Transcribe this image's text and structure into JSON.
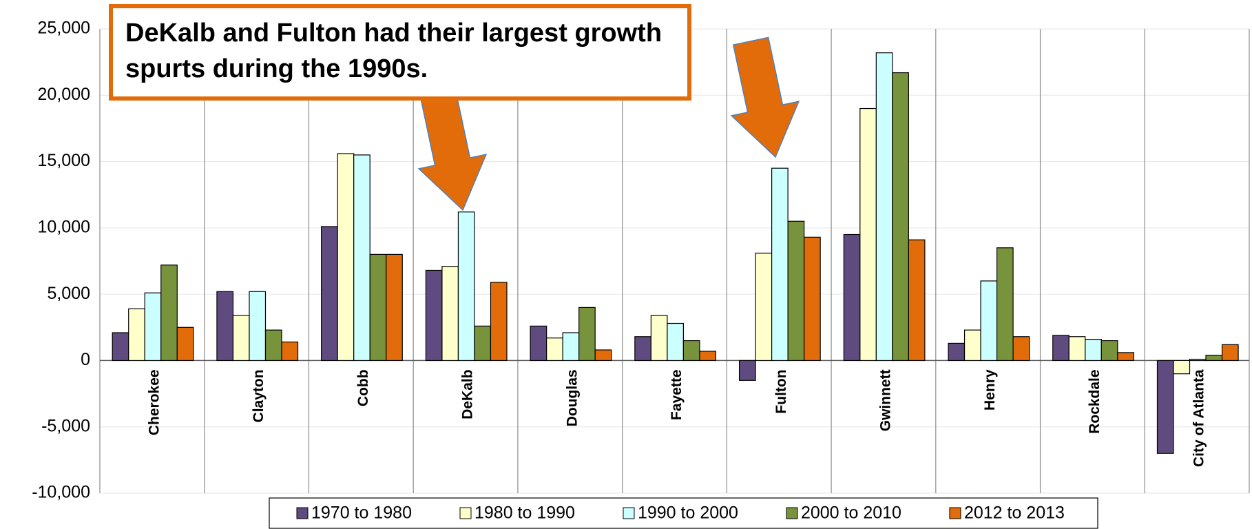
{
  "chart_data": {
    "type": "bar",
    "annotation": "DeKalb and Fulton had their largest growth spurts during the 1990s.",
    "categories": [
      "Cherokee",
      "Clayton",
      "Cobb",
      "DeKalb",
      "Douglas",
      "Fayette",
      "Fulton",
      "Gwinnett",
      "Henry",
      "Rockdale",
      "City of Atlanta"
    ],
    "series": [
      {
        "name": "1970 to 1980",
        "color": "#5f4b80",
        "values": [
          2100,
          5200,
          10100,
          6800,
          2600,
          1800,
          -1500,
          9500,
          1300,
          1900,
          -7000
        ]
      },
      {
        "name": "1980 to 1990",
        "color": "#ffffcc",
        "values": [
          3900,
          3400,
          15600,
          7100,
          1700,
          3400,
          8100,
          19000,
          2300,
          1800,
          -1000
        ]
      },
      {
        "name": "1990 to 2000",
        "color": "#ccffff",
        "values": [
          5100,
          5200,
          15500,
          11200,
          2100,
          2800,
          14500,
          23200,
          6000,
          1600,
          100
        ]
      },
      {
        "name": "2000 to 2010",
        "color": "#77933c",
        "values": [
          7200,
          2300,
          8000,
          2600,
          4000,
          1500,
          10500,
          21700,
          8500,
          1500,
          400
        ]
      },
      {
        "name": "2012 to 2013",
        "color": "#e36c0a",
        "values": [
          2500,
          1400,
          8000,
          5900,
          800,
          700,
          9300,
          9100,
          1800,
          600,
          1200
        ]
      }
    ],
    "ylim": [
      -10000,
      25000
    ],
    "yticks": [
      {
        "value": -10000,
        "label": "-10,000"
      },
      {
        "value": -5000,
        "label": "-5,000"
      },
      0,
      {
        "value": 5000,
        "label": "5,000"
      },
      {
        "value": 10000,
        "label": "10,000"
      },
      {
        "value": 15000,
        "label": "15,000"
      },
      {
        "value": 20000,
        "label": "20,000"
      },
      {
        "value": 25000,
        "label": "25,000"
      }
    ],
    "grid": true,
    "legend": "bottom"
  }
}
